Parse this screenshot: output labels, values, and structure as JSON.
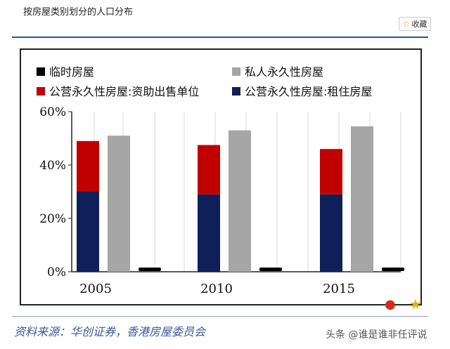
{
  "page": {
    "title": "按房屋类别划分的人口分布",
    "favorite_label": "收藏",
    "source": "资料来源：华创证券，香港房屋委员会",
    "watermark": "头条 @谁是谁非任评说"
  },
  "chart_data": {
    "type": "bar",
    "stacked": "partial",
    "categories": [
      "2005",
      "2010",
      "2015"
    ],
    "series": [
      {
        "name": "临时房屋",
        "values": [
          1,
          1,
          1
        ],
        "color": "#000000",
        "stack": "temp"
      },
      {
        "name": "私人永久性房屋",
        "values": [
          51,
          53,
          54.5
        ],
        "color": "#a6a6a6",
        "stack": "private"
      },
      {
        "name": "公营永久性房屋:租住房屋",
        "values": [
          30,
          29,
          29
        ],
        "color": "#0f1f5a",
        "stack": "public"
      },
      {
        "name": "公营永久性房屋:资助出售单位",
        "values": [
          19,
          18.5,
          17
        ],
        "color": "#c00000",
        "stack": "public"
      }
    ],
    "legend_order": [
      "临时房屋",
      "私人永久性房屋",
      "公营永久性房屋:资助出售单位",
      "公营永久性房屋:租住房屋"
    ],
    "yticks": [
      "0%",
      "20%",
      "40%",
      "60%"
    ],
    "ylim": [
      0,
      60
    ],
    "grid": true,
    "legend_position": "top"
  }
}
